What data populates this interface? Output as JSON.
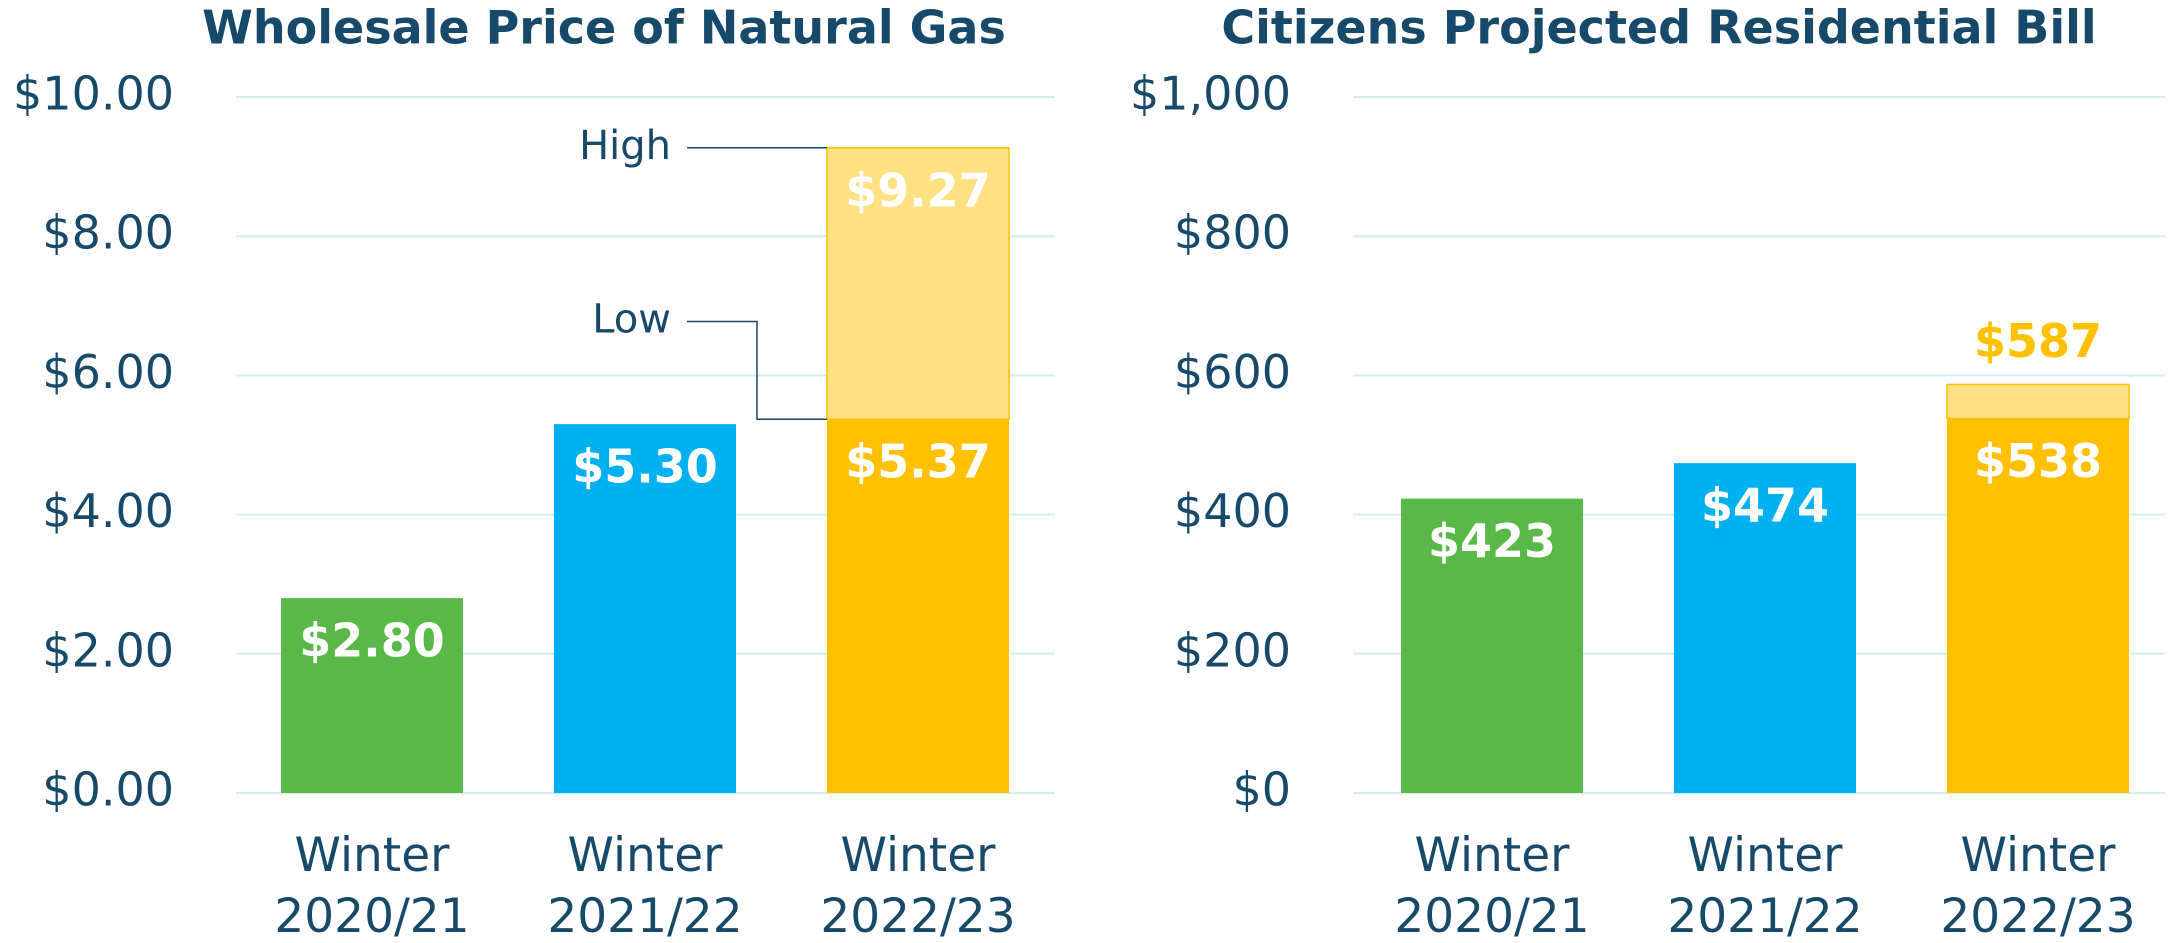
{
  "chart_data": [
    {
      "type": "range_bar",
      "title": "Wholesale Price of Natural Gas",
      "categories": [
        "Winter 2020/21",
        "Winter 2021/22",
        "Winter 2022/23"
      ],
      "colors": [
        "#58b947",
        "#00b0f0",
        "#ffc000"
      ],
      "series": [
        {
          "name": "Low",
          "values": [
            2.8,
            5.3,
            5.37
          ],
          "value_labels": [
            "$2.80",
            "$5.30",
            "$5.37"
          ]
        },
        {
          "name": "High",
          "color": "#ffe083",
          "values": [
            null,
            null,
            9.27
          ],
          "value_labels": [
            null,
            null,
            "$9.27"
          ]
        }
      ],
      "high_label_inside": true,
      "ylim": [
        0,
        10
      ],
      "yticks": [
        {
          "value": 0,
          "label": "$0.00"
        },
        {
          "value": 2,
          "label": "$2.00"
        },
        {
          "value": 4,
          "label": "$4.00"
        },
        {
          "value": 6,
          "label": "$6.00"
        },
        {
          "value": 8,
          "label": "$8.00"
        },
        {
          "value": 10,
          "label": "$10.00"
        }
      ],
      "grid": true
    },
    {
      "type": "range_bar",
      "title": "Citizens Projected Residential Bill",
      "categories": [
        "Winter 2020/21",
        "Winter 2021/22",
        "Winter 2022/23"
      ],
      "colors": [
        "#58b947",
        "#00b0f0",
        "#ffc000"
      ],
      "series": [
        {
          "values": [
            423,
            474,
            538
          ],
          "value_labels": [
            "$423",
            "$474",
            "$538"
          ]
        },
        {
          "color": "#ffe083",
          "values": [
            null,
            null,
            587
          ],
          "value_labels": [
            null,
            null,
            "$587"
          ]
        }
      ],
      "high_label_inside": false,
      "ylim": [
        0,
        1000
      ],
      "yticks": [
        {
          "value": 0,
          "label": "$0"
        },
        {
          "value": 200,
          "label": "$200"
        },
        {
          "value": 400,
          "label": "$400"
        },
        {
          "value": 600,
          "label": "$600"
        },
        {
          "value": 800,
          "label": "$800"
        },
        {
          "value": 1000,
          "label": "$1,000"
        }
      ],
      "grid": true
    }
  ]
}
